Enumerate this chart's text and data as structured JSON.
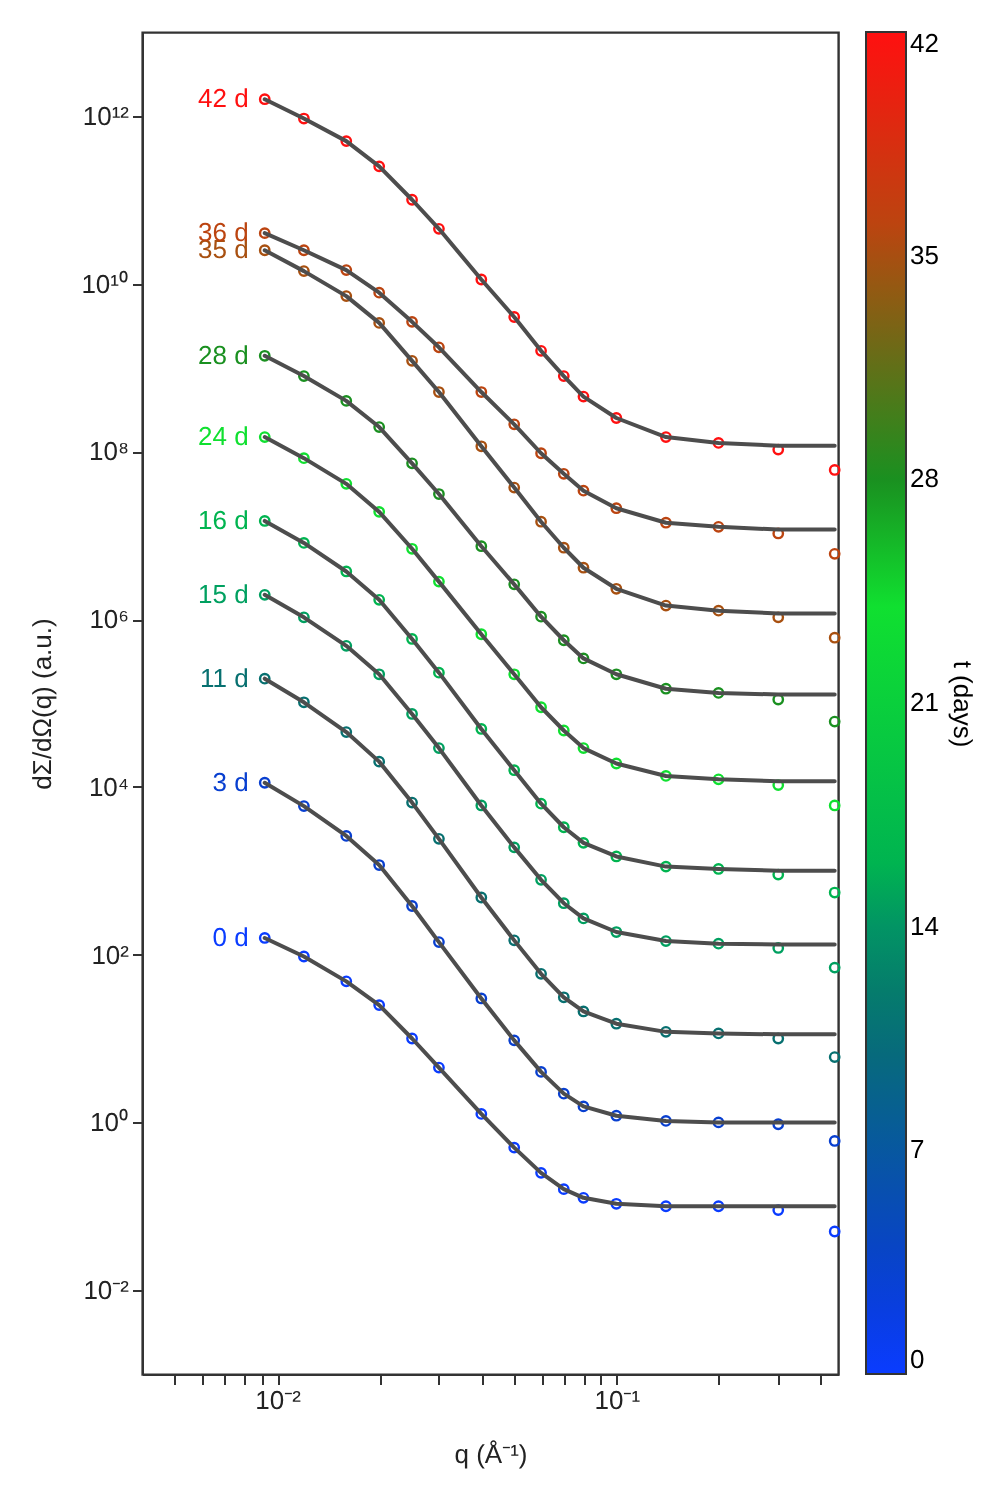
{
  "chart_data": {
    "type": "scatter",
    "xlabel": "q (Å⁻¹)",
    "ylabel": "dΣ/dΩ(q) (a.u.)",
    "clabel": "t (days)",
    "log": "xy",
    "xlim": [
      0.004,
      0.45
    ],
    "ylim": [
      0.001,
      10000000000000.0
    ],
    "xticks": [
      {
        "value": 0.005,
        "label": null
      },
      {
        "value": 0.006,
        "label": null
      },
      {
        "value": 0.007,
        "label": null
      },
      {
        "value": 0.008,
        "label": null
      },
      {
        "value": 0.009,
        "label": null
      },
      {
        "value": 0.01,
        "label": "10⁻²"
      },
      {
        "value": 0.02,
        "label": null
      },
      {
        "value": 0.03,
        "label": null
      },
      {
        "value": 0.04,
        "label": null
      },
      {
        "value": 0.05,
        "label": null
      },
      {
        "value": 0.06,
        "label": null
      },
      {
        "value": 0.07,
        "label": null
      },
      {
        "value": 0.08,
        "label": null
      },
      {
        "value": 0.09,
        "label": null
      },
      {
        "value": 0.1,
        "label": "10⁻¹"
      },
      {
        "value": 0.2,
        "label": null
      },
      {
        "value": 0.3,
        "label": null
      },
      {
        "value": 0.4,
        "label": null
      }
    ],
    "yticks": [
      {
        "value": 0.01,
        "label": "10⁻²"
      },
      {
        "value": 1,
        "label": "10⁰"
      },
      {
        "value": 100,
        "label": "10²"
      },
      {
        "value": 10000,
        "label": "10⁴"
      },
      {
        "value": 1000000,
        "label": "10⁶"
      },
      {
        "value": 100000000,
        "label": "10⁸"
      },
      {
        "value": 10000000000,
        "label": "10¹⁰"
      },
      {
        "value": 1000000000000,
        "label": "10¹²"
      }
    ],
    "clim": [
      0,
      42
    ],
    "cticks": [
      0,
      7,
      14,
      21,
      28,
      35,
      42
    ],
    "x": [
      0.0092,
      0.012,
      0.016,
      0.02,
      0.025,
      0.03,
      0.04,
      0.05,
      0.06,
      0.07,
      0.08,
      0.1,
      0.14,
      0.2,
      0.3,
      0.44
    ],
    "series": [
      {
        "name": "0 d",
        "marker": "circle",
        "color": "#0a3cff",
        "cvalues": [
          0,
          0,
          0,
          0,
          0,
          0,
          0,
          0,
          0,
          0,
          0,
          0,
          0,
          0,
          0,
          0
        ],
        "values": [
          158,
          95,
          48,
          25,
          10,
          4.5,
          1.26,
          0.5,
          0.25,
          0.16,
          0.126,
          0.107,
          0.1,
          0.1,
          0.09,
          0.05
        ]
      },
      {
        "name": "3 d",
        "marker": "circle",
        "color": "#083fd0",
        "cvalues": [
          3,
          3,
          3,
          3,
          3,
          3,
          3,
          3,
          3,
          3,
          3,
          3,
          3,
          3,
          3,
          3
        ],
        "values": [
          11200,
          5900,
          2600,
          1170,
          380,
          141,
          30,
          9.5,
          4,
          2.2,
          1.55,
          1.2,
          1.04,
          1,
          0.95,
          0.6
        ]
      },
      {
        "name": "11 d",
        "marker": "circle",
        "color": "#077070",
        "cvalues": [
          11,
          11,
          11,
          11,
          11,
          11,
          11,
          11,
          11,
          11,
          11,
          11,
          11,
          11,
          11,
          11
        ],
        "values": [
          195000,
          102000,
          45000,
          20000,
          6500,
          2400,
          480,
          148,
          59,
          31,
          21,
          15,
          12,
          11.5,
          10,
          6
        ]
      },
      {
        "name": "15 d",
        "marker": "circle",
        "color": "#00a060",
        "cvalues": [
          15,
          15,
          15,
          15,
          15,
          15,
          15,
          15,
          15,
          15,
          15,
          15,
          15,
          15,
          15,
          15
        ],
        "values": [
          1950000,
          1050000,
          480000,
          220000,
          74000,
          29000,
          6000,
          1900,
          780,
          410,
          270,
          186,
          145,
          135,
          120,
          70
        ]
      },
      {
        "name": "16 d",
        "marker": "circle",
        "color": "#00b450",
        "cvalues": [
          16,
          16,
          16,
          16,
          16,
          16,
          16,
          16,
          16,
          16,
          16,
          16,
          16,
          16,
          16,
          16
        ],
        "values": [
          14800000,
          8100000,
          3700000,
          1700000,
          580000,
          230000,
          49000,
          15800,
          6300,
          3300,
          2150,
          1480,
          1120,
          1050,
          900,
          550
        ]
      },
      {
        "name": "24 d",
        "marker": "circle",
        "color": "#10e030",
        "cvalues": [
          24,
          24,
          24,
          24,
          24,
          24,
          24,
          24,
          24,
          24,
          24,
          24,
          24,
          24,
          24,
          24
        ],
        "values": [
          148000000,
          83000000,
          41000000,
          19000000,
          6900000,
          2800000,
          660000,
          220000,
          89000,
          47000,
          29000,
          19000,
          13500,
          12300,
          10500,
          6000
        ]
      },
      {
        "name": "28 d",
        "marker": "circle",
        "color": "#1a9020",
        "cvalues": [
          28,
          28,
          28,
          28,
          28,
          28,
          28,
          28,
          28,
          28,
          28,
          28,
          28,
          28,
          28,
          28
        ],
        "values": [
          1380000000,
          790000000,
          400000000,
          195000000,
          72000000,
          31000000,
          7400000,
          2600000,
          1070000,
          560000,
          340000,
          220000,
          148000,
          132000,
          110000,
          60000
        ]
      },
      {
        "name": "35 d",
        "marker": "circle",
        "color": "#a85010",
        "cvalues": [
          35,
          35,
          35,
          35,
          35,
          35,
          35,
          35,
          35,
          35,
          35,
          35,
          35,
          35,
          35,
          35
        ],
        "values": [
          25000000000,
          14100000000,
          7100000000,
          3400000000,
          1200000000,
          510000000,
          115000000,
          37000000,
          14500000,
          7100000,
          4100000,
          2300000,
          1450000,
          1260000,
          1050000,
          600000
        ]
      },
      {
        "name": "36 d",
        "marker": "circle",
        "color": "#bc4410",
        "cvalues": [
          36,
          36,
          36,
          36,
          36,
          36,
          36,
          36,
          36,
          36,
          36,
          36,
          36,
          36,
          36,
          36
        ],
        "values": [
          40000000000,
          25000000000,
          14500000000,
          7800000000,
          3500000000,
          1740000000,
          510000000,
          210000000,
          95000000,
          54000000,
          34000000,
          21000000,
          14100000,
          12600000,
          10500000,
          6000000
        ]
      },
      {
        "name": "42 d",
        "marker": "circle",
        "color": "#ff1010",
        "cvalues": [
          42,
          42,
          42,
          42,
          42,
          42,
          42,
          42,
          42,
          42,
          42,
          42,
          42,
          42,
          42,
          42
        ],
        "values": [
          1580000000000,
          930000000000,
          500000000000,
          250000000000,
          100000000000,
          45000000000,
          11200000000,
          4000000000,
          1580000000,
          790000000,
          450000000,
          250000000,
          148000000,
          126000000,
          105000000,
          60000000
        ]
      },
      {
        "type": "line",
        "color": "#4d4d4d",
        "values": [
          158,
          95,
          48,
          25,
          10,
          4.5,
          1.26,
          0.5,
          0.25,
          0.16,
          0.126,
          0.107,
          0.1,
          0.1,
          0.1,
          0.1
        ]
      },
      {
        "type": "line",
        "color": "#4d4d4d",
        "values": [
          11200,
          5900,
          2600,
          1170,
          380,
          141,
          30,
          9.5,
          4,
          2.2,
          1.55,
          1.2,
          1.04,
          1,
          1,
          1
        ]
      },
      {
        "type": "line",
        "color": "#4d4d4d",
        "values": [
          195000,
          102000,
          45000,
          20000,
          6500,
          2400,
          480,
          148,
          59,
          31,
          21,
          15,
          12,
          11.5,
          11.2,
          11.2
        ]
      },
      {
        "type": "line",
        "color": "#4d4d4d",
        "values": [
          1950000,
          1050000,
          480000,
          220000,
          74000,
          29000,
          6000,
          1900,
          780,
          410,
          270,
          186,
          145,
          135,
          132,
          132
        ]
      },
      {
        "type": "line",
        "color": "#4d4d4d",
        "values": [
          14800000,
          8100000,
          3700000,
          1700000,
          580000,
          230000,
          49000,
          15800,
          6300,
          3300,
          2150,
          1480,
          1120,
          1050,
          1000,
          1000
        ]
      },
      {
        "type": "line",
        "color": "#4d4d4d",
        "values": [
          148000000,
          83000000,
          41000000,
          19000000,
          6900000,
          2800000,
          660000,
          220000,
          89000,
          47000,
          29000,
          19000,
          13500,
          12300,
          11700,
          11700
        ]
      },
      {
        "type": "line",
        "color": "#4d4d4d",
        "values": [
          1380000000,
          790000000,
          400000000,
          195000000,
          72000000,
          31000000,
          7400000,
          2600000,
          1070000,
          560000,
          340000,
          220000,
          148000,
          132000,
          126000,
          126000
        ]
      },
      {
        "type": "line",
        "color": "#4d4d4d",
        "values": [
          25000000000,
          14100000000,
          7100000000,
          3400000000,
          1200000000,
          510000000,
          115000000,
          37000000,
          14500000,
          7100000,
          4100000,
          2300000,
          1450000,
          1260000,
          1170000,
          1170000
        ]
      },
      {
        "type": "line",
        "color": "#4d4d4d",
        "values": [
          40000000000,
          25000000000,
          14500000000,
          7800000000,
          3500000000,
          1740000000,
          510000000,
          210000000,
          95000000,
          54000000,
          34000000,
          21000000,
          14100000,
          12600000,
          11700000,
          11700000
        ]
      },
      {
        "type": "line",
        "color": "#4d4d4d",
        "values": [
          1580000000000,
          930000000000,
          500000000000,
          250000000000,
          100000000000,
          45000000000,
          11200000000,
          4000000000,
          1580000000,
          790000000,
          450000000,
          250000000,
          148000000,
          126000000,
          117000000,
          117000000
        ]
      }
    ]
  }
}
